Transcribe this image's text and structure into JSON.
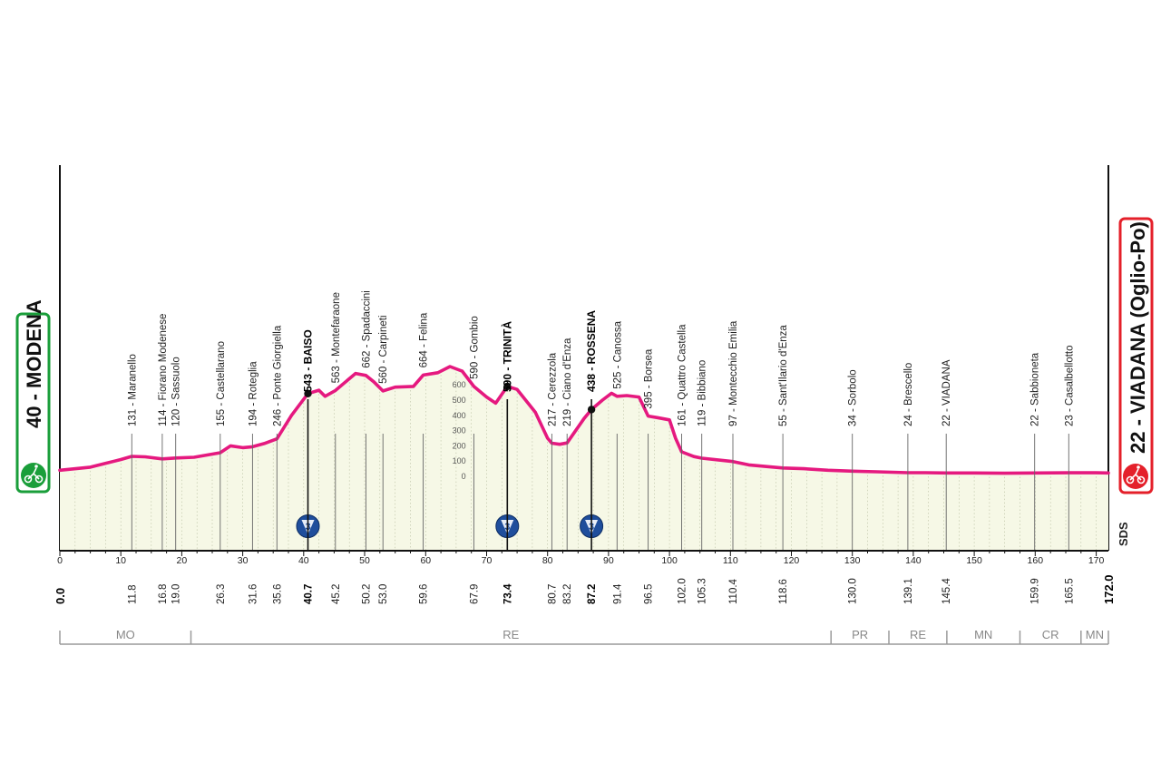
{
  "start": {
    "label": "40 - MODENA",
    "color": "#1a9e3a"
  },
  "finish": {
    "label": "22 - VIADANA (Oglio-Po)",
    "color": "#e4202a"
  },
  "total_distance_label": "172.0",
  "start_distance_label": "0.0",
  "sponsor_mark": "SDS",
  "colors": {
    "profile_line": "#e5197f",
    "profile_fill": "#f6f8e6",
    "climb_badge": "#1f4e9c"
  },
  "chart_data": {
    "type": "area",
    "title": "",
    "xlabel": "",
    "ylabel": "",
    "xlim": [
      0,
      172
    ],
    "ylim": [
      0,
      700
    ],
    "x_ticks": [
      0,
      10,
      20,
      30,
      40,
      50,
      60,
      70,
      80,
      90,
      100,
      110,
      120,
      130,
      140,
      150,
      160,
      170
    ],
    "altitude_ticks": [
      0,
      100,
      200,
      300,
      400,
      500,
      600
    ],
    "profile": [
      [
        0,
        40
      ],
      [
        5,
        60
      ],
      [
        10,
        110
      ],
      [
        11.8,
        131
      ],
      [
        14,
        128
      ],
      [
        16.8,
        114
      ],
      [
        19,
        120
      ],
      [
        22,
        125
      ],
      [
        26.3,
        155
      ],
      [
        28,
        200
      ],
      [
        30,
        188
      ],
      [
        31.6,
        194
      ],
      [
        33.5,
        215
      ],
      [
        35.6,
        246
      ],
      [
        38,
        400
      ],
      [
        40.7,
        543
      ],
      [
        42.5,
        565
      ],
      [
        43.5,
        525
      ],
      [
        45.2,
        563
      ],
      [
        48.5,
        675
      ],
      [
        50.2,
        662
      ],
      [
        51.5,
        620
      ],
      [
        53,
        560
      ],
      [
        55,
        585
      ],
      [
        58,
        590
      ],
      [
        59.6,
        664
      ],
      [
        62,
        680
      ],
      [
        64,
        720
      ],
      [
        66,
        690
      ],
      [
        67.9,
        590
      ],
      [
        70,
        520
      ],
      [
        71.5,
        480
      ],
      [
        73.4,
        590
      ],
      [
        75,
        570
      ],
      [
        78,
        420
      ],
      [
        80,
        250
      ],
      [
        80.7,
        217
      ],
      [
        82,
        210
      ],
      [
        83.2,
        219
      ],
      [
        86,
        380
      ],
      [
        87.2,
        438
      ],
      [
        89,
        500
      ],
      [
        90.5,
        545
      ],
      [
        91.4,
        525
      ],
      [
        93,
        530
      ],
      [
        95,
        520
      ],
      [
        96.5,
        395
      ],
      [
        98,
        385
      ],
      [
        100,
        370
      ],
      [
        101,
        250
      ],
      [
        102,
        161
      ],
      [
        104,
        130
      ],
      [
        105.3,
        119
      ],
      [
        110.4,
        97
      ],
      [
        113,
        75
      ],
      [
        118.6,
        55
      ],
      [
        122,
        50
      ],
      [
        126,
        40
      ],
      [
        130,
        34
      ],
      [
        134,
        30
      ],
      [
        139.1,
        24
      ],
      [
        142,
        24
      ],
      [
        145.4,
        22
      ],
      [
        150,
        22
      ],
      [
        155,
        20
      ],
      [
        159.9,
        22
      ],
      [
        165.5,
        23
      ],
      [
        170,
        23
      ],
      [
        172,
        22
      ]
    ],
    "waypoints": [
      {
        "name": "131 - Maranello",
        "km": 11.8,
        "km_label": "11.8",
        "climb": false
      },
      {
        "name": "114 - Fiorano Modenese",
        "km": 16.8,
        "km_label": "16.8",
        "climb": false
      },
      {
        "name": "120 - Sassuolo",
        "km": 19.0,
        "km_label": "19.0",
        "climb": false
      },
      {
        "name": "155 - Castellarano",
        "km": 26.3,
        "km_label": "26.3",
        "climb": false
      },
      {
        "name": "194 - Roteglia",
        "km": 31.6,
        "km_label": "31.6",
        "climb": false
      },
      {
        "name": "246 - Ponte Giorgiella",
        "km": 35.6,
        "km_label": "35.6",
        "climb": false
      },
      {
        "name": "543 - BAISO",
        "km": 40.7,
        "km_label": "40.7",
        "climb": true
      },
      {
        "name": "563 - Montefaraone",
        "km": 45.2,
        "km_label": "45.2",
        "climb": false
      },
      {
        "name": "662 - Spadaccini",
        "km": 50.2,
        "km_label": "50.2",
        "climb": false
      },
      {
        "name": "560 - Carpineti",
        "km": 53.0,
        "km_label": "53.0",
        "climb": false
      },
      {
        "name": "664 - Felina",
        "km": 59.6,
        "km_label": "59.6",
        "climb": false
      },
      {
        "name": "590 - Gombio",
        "km": 67.9,
        "km_label": "67.9",
        "climb": false
      },
      {
        "name": "590 - TRINITÀ",
        "km": 73.4,
        "km_label": "73.4",
        "climb": true
      },
      {
        "name": "217 - Cerezzola",
        "km": 80.7,
        "km_label": "80.7",
        "climb": false
      },
      {
        "name": "219 - Ciano d'Enza",
        "km": 83.2,
        "km_label": "83.2",
        "climb": false
      },
      {
        "name": "438 - ROSSENA",
        "km": 87.2,
        "km_label": "87.2",
        "climb": true
      },
      {
        "name": "525 - Canossa",
        "km": 91.4,
        "km_label": "91.4",
        "climb": false
      },
      {
        "name": "395 - Borsea",
        "km": 96.5,
        "km_label": "96.5",
        "climb": false
      },
      {
        "name": "161 - Quattro Castella",
        "km": 102.0,
        "km_label": "102.0",
        "climb": false
      },
      {
        "name": "119 - Bibbiano",
        "km": 105.3,
        "km_label": "105.3",
        "climb": false
      },
      {
        "name": "97 - Montecchio Emilia",
        "km": 110.4,
        "km_label": "110.4",
        "climb": false
      },
      {
        "name": "55 - Sant'Ilario d'Enza",
        "km": 118.6,
        "km_label": "118.6",
        "climb": false
      },
      {
        "name": "34 - Sorbolo",
        "km": 130.0,
        "km_label": "130.0",
        "climb": false
      },
      {
        "name": "24 - Brescello",
        "km": 139.1,
        "km_label": "139.1",
        "climb": false
      },
      {
        "name": "22 - VIADANA",
        "km": 145.4,
        "km_label": "145.4",
        "climb": false
      },
      {
        "name": "22 - Sabbioneta",
        "km": 159.9,
        "km_label": "159.9",
        "climb": false
      },
      {
        "name": "23 - Casalbellotto",
        "km": 165.5,
        "km_label": "165.5",
        "climb": false
      }
    ],
    "climbs": [
      {
        "km": 40.7,
        "category": "3"
      },
      {
        "km": 73.4,
        "category": "3"
      },
      {
        "km": 87.2,
        "category": "3"
      }
    ],
    "regions": [
      {
        "label": "MO",
        "from": 0,
        "to": 21.5
      },
      {
        "label": "RE",
        "from": 21.5,
        "to": 126.5
      },
      {
        "label": "PR",
        "from": 126.5,
        "to": 136
      },
      {
        "label": "RE",
        "from": 136,
        "to": 145.5
      },
      {
        "label": "MN",
        "from": 145.5,
        "to": 157.5
      },
      {
        "label": "CR",
        "from": 157.5,
        "to": 167.5
      },
      {
        "label": "MN",
        "from": 167.5,
        "to": 172
      }
    ]
  }
}
